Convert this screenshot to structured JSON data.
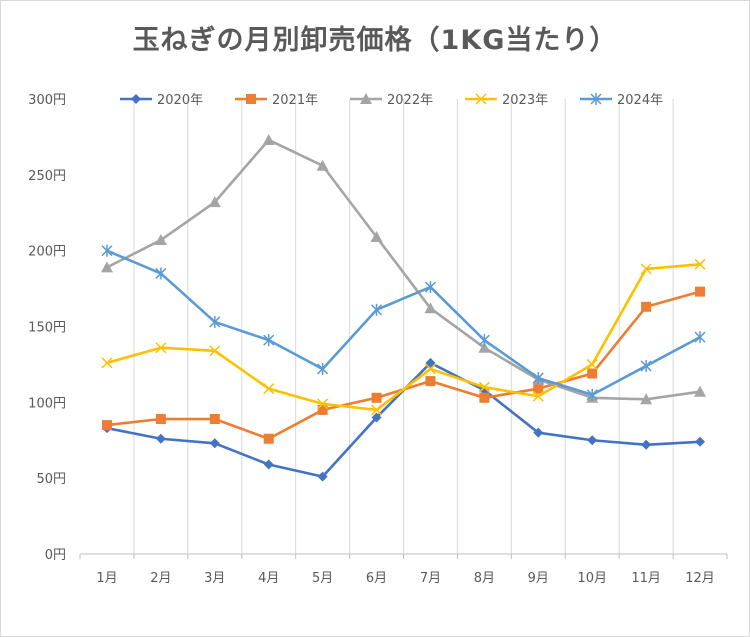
{
  "chart_data": {
    "type": "line",
    "title": "玉ねぎの月別卸売価格（1KG当たり）",
    "categories": [
      "1月",
      "2月",
      "3月",
      "4月",
      "5月",
      "6月",
      "7月",
      "8月",
      "9月",
      "10月",
      "11月",
      "12月"
    ],
    "yticks": [
      "0円",
      "50円",
      "100円",
      "150円",
      "200円",
      "250円",
      "300円"
    ],
    "ylim": [
      0,
      300
    ],
    "grid": "vertical",
    "legend": "top",
    "series": [
      {
        "name": "2020年",
        "color": "#4472C4",
        "marker": "diamond",
        "values": [
          83,
          76,
          73,
          59,
          51,
          90,
          126,
          108,
          80,
          75,
          72,
          74
        ]
      },
      {
        "name": "2021年",
        "color": "#ED7D31",
        "marker": "square",
        "values": [
          85,
          89,
          89,
          76,
          95,
          103,
          114,
          103,
          109,
          119,
          163,
          173
        ]
      },
      {
        "name": "2022年",
        "color": "#A5A5A5",
        "marker": "triangle",
        "values": [
          189,
          207,
          232,
          273,
          256,
          209,
          162,
          136,
          115,
          103,
          102,
          107
        ]
      },
      {
        "name": "2023年",
        "color": "#FFC000",
        "marker": "x",
        "values": [
          126,
          136,
          134,
          109,
          99,
          95,
          122,
          110,
          104,
          125,
          188,
          191
        ]
      },
      {
        "name": "2024年",
        "color": "#5B9BD5",
        "marker": "star",
        "values": [
          200,
          185,
          153,
          141,
          122,
          161,
          176,
          141,
          116,
          105,
          124,
          143
        ]
      }
    ]
  }
}
